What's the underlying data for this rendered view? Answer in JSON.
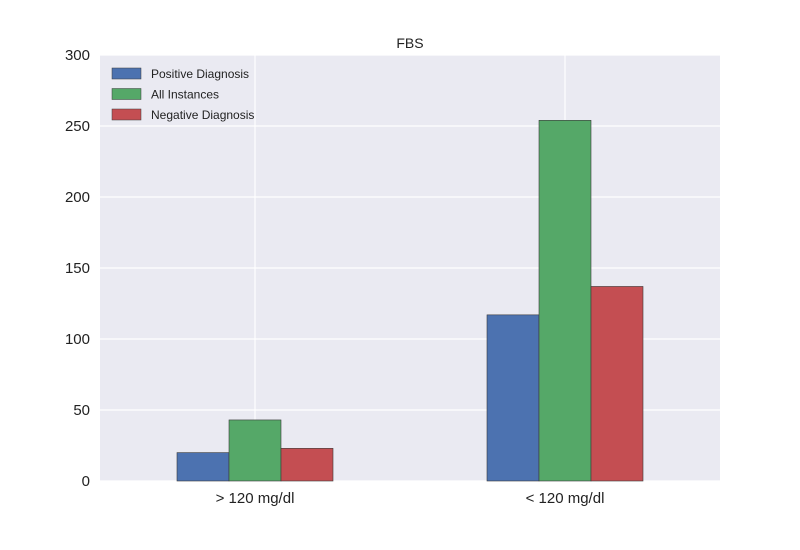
{
  "chart_data": {
    "type": "bar",
    "title": "FBS",
    "xlabel": "",
    "ylabel": "",
    "categories": [
      "> 120 mg/dl",
      "< 120 mg/dl"
    ],
    "ylim": [
      0,
      300
    ],
    "yticks": [
      0,
      50,
      100,
      150,
      200,
      250,
      300
    ],
    "grid": true,
    "legend_position": "top-left",
    "series": [
      {
        "name": "Positive Diagnosis",
        "values": [
          20,
          117
        ],
        "color": "#4c72b0"
      },
      {
        "name": "All Instances",
        "values": [
          43,
          254
        ],
        "color": "#55a868"
      },
      {
        "name": "Negative Diagnosis",
        "values": [
          23,
          137
        ],
        "color": "#c44e52"
      }
    ]
  }
}
